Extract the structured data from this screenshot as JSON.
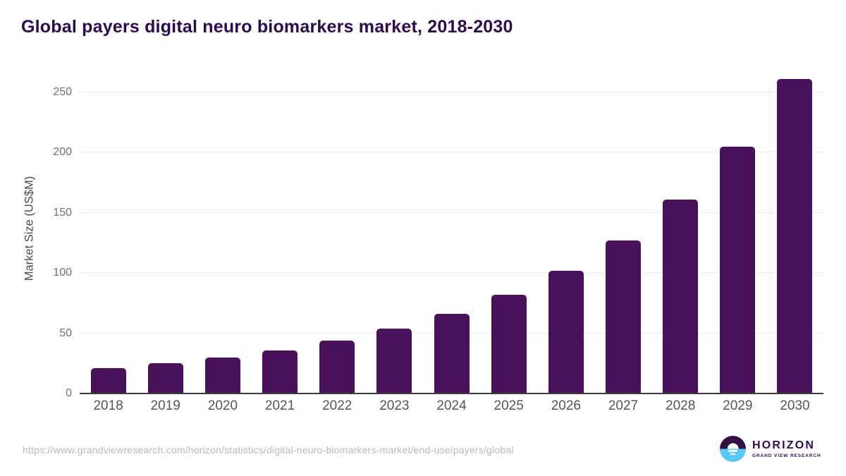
{
  "title": "Global payers digital neuro biomarkers market, 2018-2030",
  "source_url": "https://www.grandviewresearch.com/horizon/statistics/digital-neuro-biomarkers-market/end-use/payers/global",
  "logo": {
    "wordmark": "HORIZON",
    "subtitle": "GRAND VIEW RESEARCH"
  },
  "colors": {
    "bar": "#49115A",
    "title": "#2D0B50",
    "grid": "#ECECEC",
    "axis": "#3C3C3C",
    "xtick": "#555557",
    "ytick": "#707070",
    "ylabel": "#4A4A4A",
    "url": "#B9B9B9",
    "logo_purple": "#311146",
    "logo_blue": "#5BC9F5"
  },
  "chart_data": {
    "type": "bar",
    "title": "Global payers digital neuro biomarkers market, 2018-2030",
    "categories": [
      "2018",
      "2019",
      "2020",
      "2021",
      "2022",
      "2023",
      "2024",
      "2025",
      "2026",
      "2027",
      "2028",
      "2029",
      "2030"
    ],
    "values": [
      21,
      25,
      30,
      36,
      44,
      54,
      66,
      82,
      102,
      127,
      161,
      205,
      261
    ],
    "xlabel": "",
    "ylabel": "Market Size (US$M)",
    "ylim": [
      0,
      265
    ],
    "yticks": [
      0,
      50,
      100,
      150,
      200,
      250
    ],
    "grid": true,
    "legend": false,
    "bar_color": "#49115A"
  }
}
